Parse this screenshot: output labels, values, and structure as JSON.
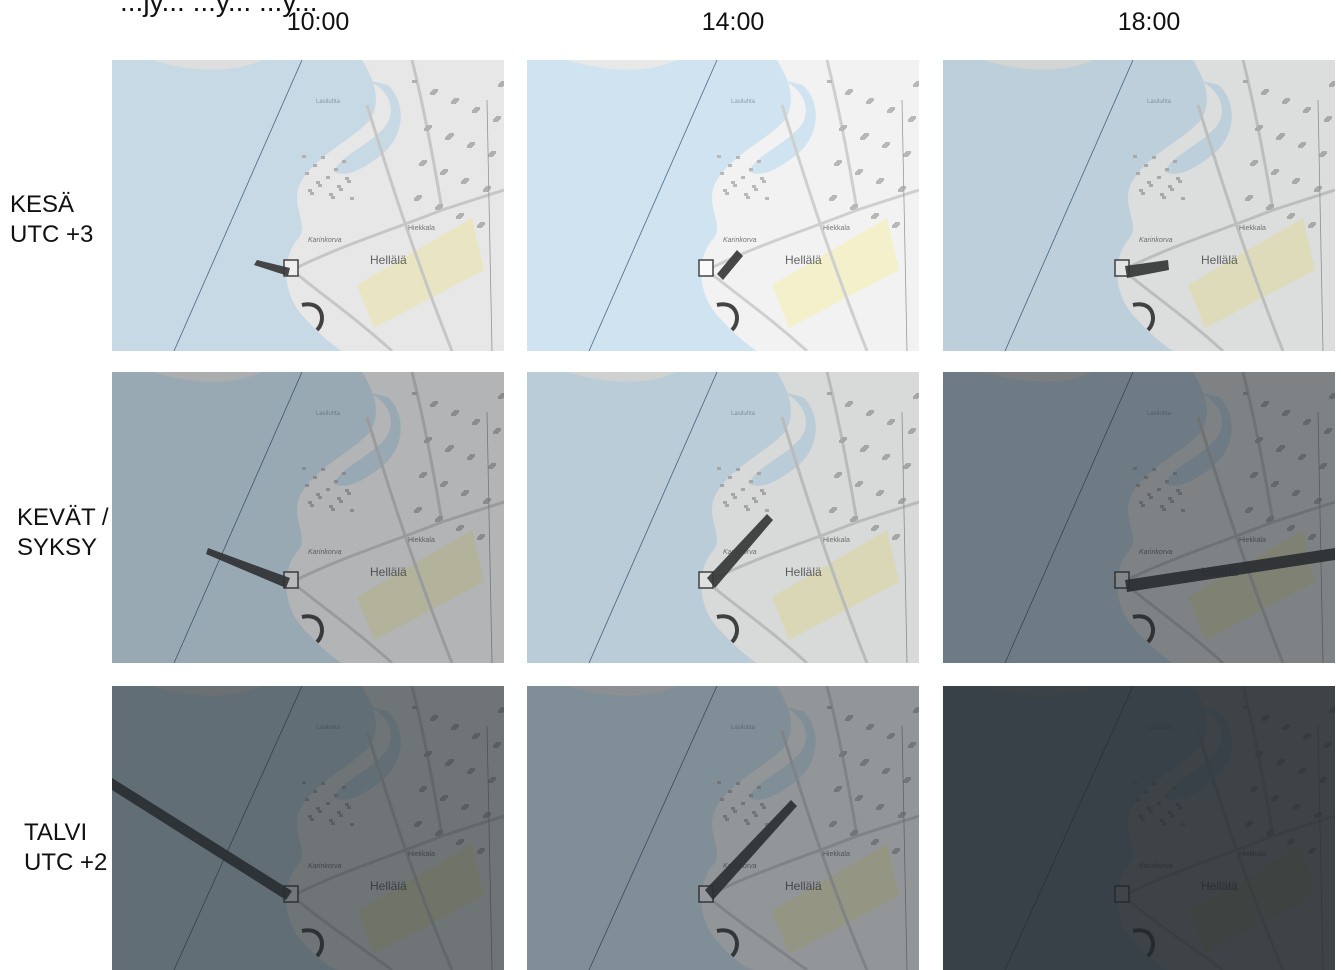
{
  "header": {
    "title_fragment": "...jy... ...y... ...y...",
    "columns": [
      "10:00",
      "14:00",
      "18:00"
    ]
  },
  "rows": [
    {
      "line1": "KESÄ",
      "line2": "UTC +3"
    },
    {
      "line1": "KEVÄT /",
      "line2": "SYKSY"
    },
    {
      "line1": "TALVI",
      "line2": "UTC +2"
    }
  ],
  "map_labels": {
    "town": "Hellälä",
    "area": "Hiekkala",
    "point": "Karinkorva",
    "bay": "Lasiluhta"
  },
  "colors": {
    "water": "#cfe3f0",
    "land": "#f2f2f2",
    "sand": "#f5f0c4",
    "shadow": "#3a3a3a"
  },
  "panels": [
    {
      "id": "summer-1000",
      "dark": 0.05
    },
    {
      "id": "summer-1400",
      "dark": 0.0
    },
    {
      "id": "summer-1800",
      "dark": 0.1
    },
    {
      "id": "spring-1000",
      "dark": 0.3
    },
    {
      "id": "spring-1400",
      "dark": 0.12
    },
    {
      "id": "spring-1800",
      "dark": 0.55
    },
    {
      "id": "winter-1000",
      "dark": 0.62
    },
    {
      "id": "winter-1400",
      "dark": 0.45
    },
    {
      "id": "winter-1800",
      "dark": 0.86
    }
  ]
}
